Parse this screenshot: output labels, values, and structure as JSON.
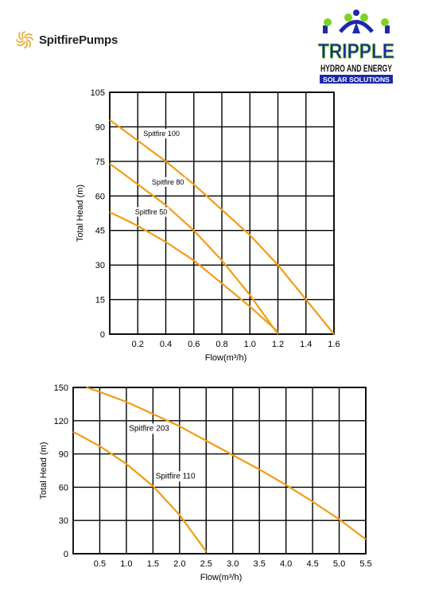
{
  "header": {
    "brand_name": "SpitfirePumps",
    "logo": {
      "line1": "TRIPPLE",
      "line2": "HYDRO AND ENERGY",
      "line3": "SOLAR SOLUTIONS",
      "colors": {
        "blue": "#1c2aa8",
        "green": "#7ed321",
        "orange": "#f39c12"
      }
    }
  },
  "chart_data": [
    {
      "type": "line",
      "title": "",
      "xlabel": "Flow(m³/h)",
      "ylabel": "Total Head (m)",
      "xlim": [
        0,
        1.6
      ],
      "ylim": [
        0,
        105
      ],
      "xticks": [
        0.2,
        0.4,
        0.6,
        0.8,
        1.0,
        1.2,
        1.4,
        1.6
      ],
      "xtick_labels": [
        "0.2",
        "0.4",
        "0.6",
        "0.8",
        "1.0",
        "1.2",
        "1.4",
        "1.6"
      ],
      "yticks": [
        0,
        15,
        30,
        45,
        60,
        75,
        90,
        105
      ],
      "ytick_labels": [
        "0",
        "15",
        "30",
        "45",
        "60",
        "75",
        "90",
        "105"
      ],
      "grid": true,
      "line_color": "#f39c12",
      "series": [
        {
          "name": "Spitfire 100",
          "x": [
            0,
            0.2,
            0.4,
            0.6,
            0.8,
            1.0,
            1.2,
            1.4,
            1.6
          ],
          "y": [
            93,
            84,
            75,
            65,
            54,
            43,
            30,
            15,
            0
          ],
          "label_at": [
            0.24,
            86
          ]
        },
        {
          "name": "Spitfire 80",
          "x": [
            0,
            0.2,
            0.4,
            0.6,
            0.8,
            1.0,
            1.2
          ],
          "y": [
            74,
            65,
            56,
            45,
            32,
            17,
            0
          ],
          "label_at": [
            0.3,
            65
          ]
        },
        {
          "name": "Spitfire 50",
          "x": [
            0,
            0.2,
            0.4,
            0.6,
            0.8,
            1.0,
            1.2
          ],
          "y": [
            53,
            47,
            40,
            32,
            22,
            12,
            1
          ],
          "label_at": [
            0.18,
            52
          ]
        }
      ]
    },
    {
      "type": "line",
      "title": "",
      "xlabel": "Flow(m³/h)",
      "ylabel": "Total Head (m)",
      "xlim": [
        0,
        5.5
      ],
      "ylim": [
        0,
        150
      ],
      "xticks": [
        0.5,
        1.0,
        1.5,
        2.0,
        2.5,
        3.0,
        3.5,
        4.0,
        4.5,
        5.0,
        5.5
      ],
      "xtick_labels": [
        "0.5",
        "1.0",
        "1.5",
        "2.0",
        "2.5",
        "3.0",
        "3.5",
        "4.0",
        "4.5",
        "5.0",
        "5.5"
      ],
      "yticks": [
        0,
        30,
        60,
        90,
        120,
        150
      ],
      "ytick_labels": [
        "0",
        "30",
        "60",
        "90",
        "120",
        "150"
      ],
      "grid": true,
      "line_color": "#f39c12",
      "series": [
        {
          "name": "Spitfire 203",
          "x": [
            0.25,
            0.5,
            1.0,
            1.5,
            2.0,
            2.5,
            3.0,
            3.5,
            4.0,
            4.5,
            5.0,
            5.5
          ],
          "y": [
            150,
            146,
            137,
            126,
            115,
            102,
            89,
            76,
            62,
            47,
            31,
            13
          ],
          "label_at": [
            1.05,
            111
          ]
        },
        {
          "name": "Spitfire 110",
          "x": [
            0,
            0.5,
            1.0,
            1.5,
            2.0,
            2.5
          ],
          "y": [
            110,
            97,
            81,
            61,
            35,
            2
          ],
          "label_at": [
            1.55,
            68
          ]
        }
      ]
    }
  ]
}
